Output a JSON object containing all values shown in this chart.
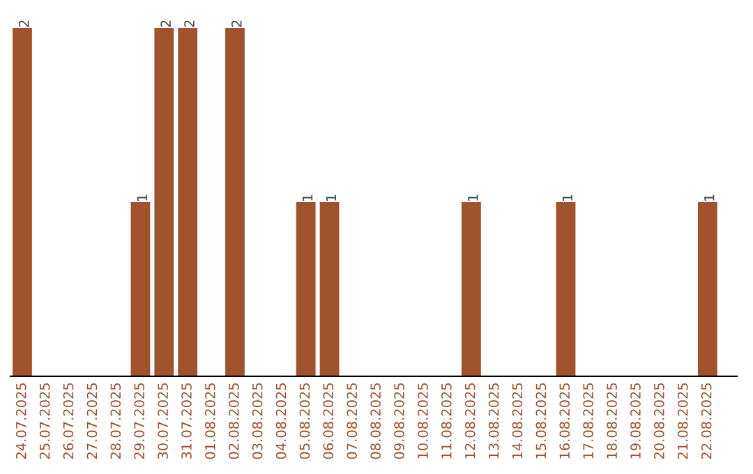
{
  "chart_data": {
    "type": "bar",
    "categories": [
      "24.07.2025",
      "25.07.2025",
      "26.07.2025",
      "27.07.2025",
      "28.07.2025",
      "29.07.2025",
      "30.07.2025",
      "31.07.2025",
      "01.08.2025",
      "02.08.2025",
      "03.08.2025",
      "04.08.2025",
      "05.08.2025",
      "06.08.2025",
      "07.08.2025",
      "08.08.2025",
      "09.08.2025",
      "10.08.2025",
      "11.08.2025",
      "12.08.2025",
      "13.08.2025",
      "14.08.2025",
      "15.08.2025",
      "16.08.2025",
      "17.08.2025",
      "18.08.2025",
      "19.08.2025",
      "20.08.2025",
      "21.08.2025",
      "22.08.2025"
    ],
    "values": [
      2,
      0,
      0,
      0,
      0,
      1,
      2,
      2,
      0,
      2,
      0,
      0,
      1,
      1,
      0,
      0,
      0,
      0,
      0,
      1,
      0,
      0,
      0,
      1,
      0,
      0,
      0,
      0,
      0,
      1
    ],
    "value_labels": [
      "2",
      null,
      null,
      null,
      null,
      "1",
      "2",
      "2",
      null,
      "2",
      null,
      null,
      "1",
      "1",
      null,
      null,
      null,
      null,
      null,
      "1",
      null,
      null,
      null,
      "1",
      null,
      null,
      null,
      null,
      null,
      "1"
    ],
    "color": "#a0522d",
    "tick_labels": "x",
    "grid": false,
    "legend": false
  }
}
